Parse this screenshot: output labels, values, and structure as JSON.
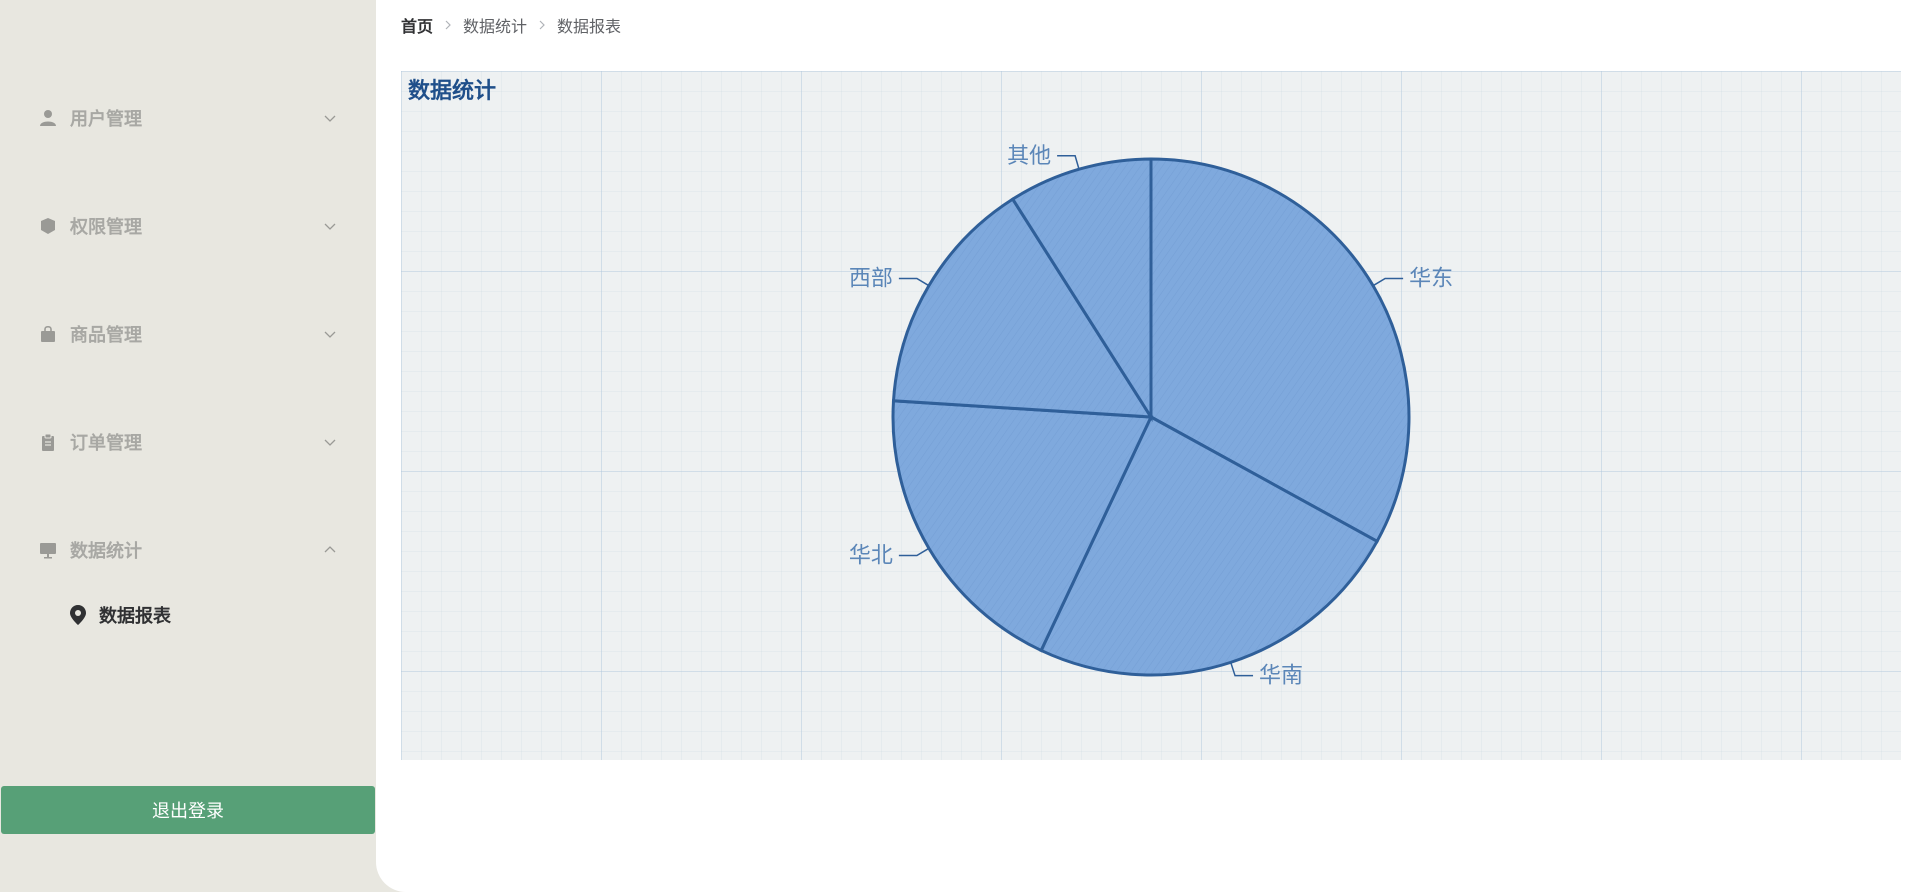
{
  "sidebar": {
    "menus": [
      {
        "label": "用户管理",
        "icon": "user-icon",
        "expanded": false
      },
      {
        "label": "权限管理",
        "icon": "shield-icon",
        "expanded": false
      },
      {
        "label": "商品管理",
        "icon": "shopping-bag-icon",
        "expanded": false
      },
      {
        "label": "订单管理",
        "icon": "clipboard-icon",
        "expanded": false
      },
      {
        "label": "数据统计",
        "icon": "monitor-icon",
        "expanded": true
      }
    ],
    "submenu": {
      "label": "数据报表",
      "icon": "location-pin-icon",
      "active": true
    },
    "logout_label": "退出登录"
  },
  "breadcrumb": [
    "首页",
    "数据统计",
    "数据报表"
  ],
  "colors": {
    "sidebar_bg": "#e8e7e0",
    "logout_bg": "#57a077",
    "chart_title": "#1f4f8a",
    "slice_fill": "#7fa9dd",
    "slice_stroke": "#2f5f99",
    "label": "#5b86b8"
  },
  "chart_data": {
    "type": "pie",
    "title": "数据统计",
    "slices": [
      {
        "name": "华东",
        "value": 33
      },
      {
        "name": "华南",
        "value": 24
      },
      {
        "name": "华北",
        "value": 19
      },
      {
        "name": "西部",
        "value": 15
      },
      {
        "name": "其他",
        "value": 9
      }
    ]
  }
}
